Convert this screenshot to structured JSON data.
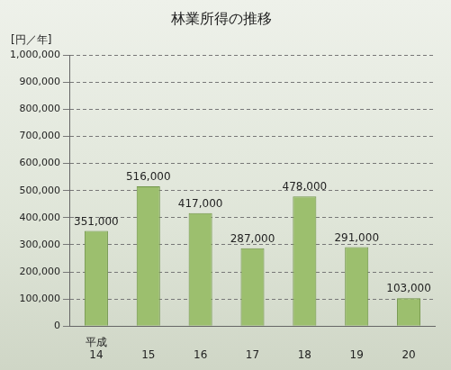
{
  "chart_data": {
    "type": "bar",
    "title": "林業所得の推移",
    "y_label": "[円／年]",
    "categories": [
      "平成14",
      "15",
      "16",
      "17",
      "18",
      "19",
      "20"
    ],
    "values": [
      351000,
      516000,
      417000,
      287000,
      478000,
      291000,
      103000
    ],
    "value_labels": [
      "351,000",
      "516,000",
      "417,000",
      "287,000",
      "478,000",
      "291,000",
      "103,000"
    ],
    "data_labels": true,
    "color": "#9cbf6e",
    "ylim": [
      0,
      1000000
    ],
    "yticks": [
      0,
      {
        "value": 100000,
        "label": "100,000"
      },
      {
        "value": 200000,
        "label": "200,000"
      },
      {
        "value": 300000,
        "label": "300,000"
      },
      {
        "value": 400000,
        "label": "400,000"
      },
      {
        "value": 500000,
        "label": "500,000"
      },
      {
        "value": 600000,
        "label": "600,000"
      },
      {
        "value": 700000,
        "label": "700,000"
      },
      {
        "value": 800000,
        "label": "800,000"
      },
      {
        "value": 900000,
        "label": "900,000"
      },
      {
        "value": 1000000,
        "label": "1,000,000"
      }
    ],
    "grid": true
  }
}
